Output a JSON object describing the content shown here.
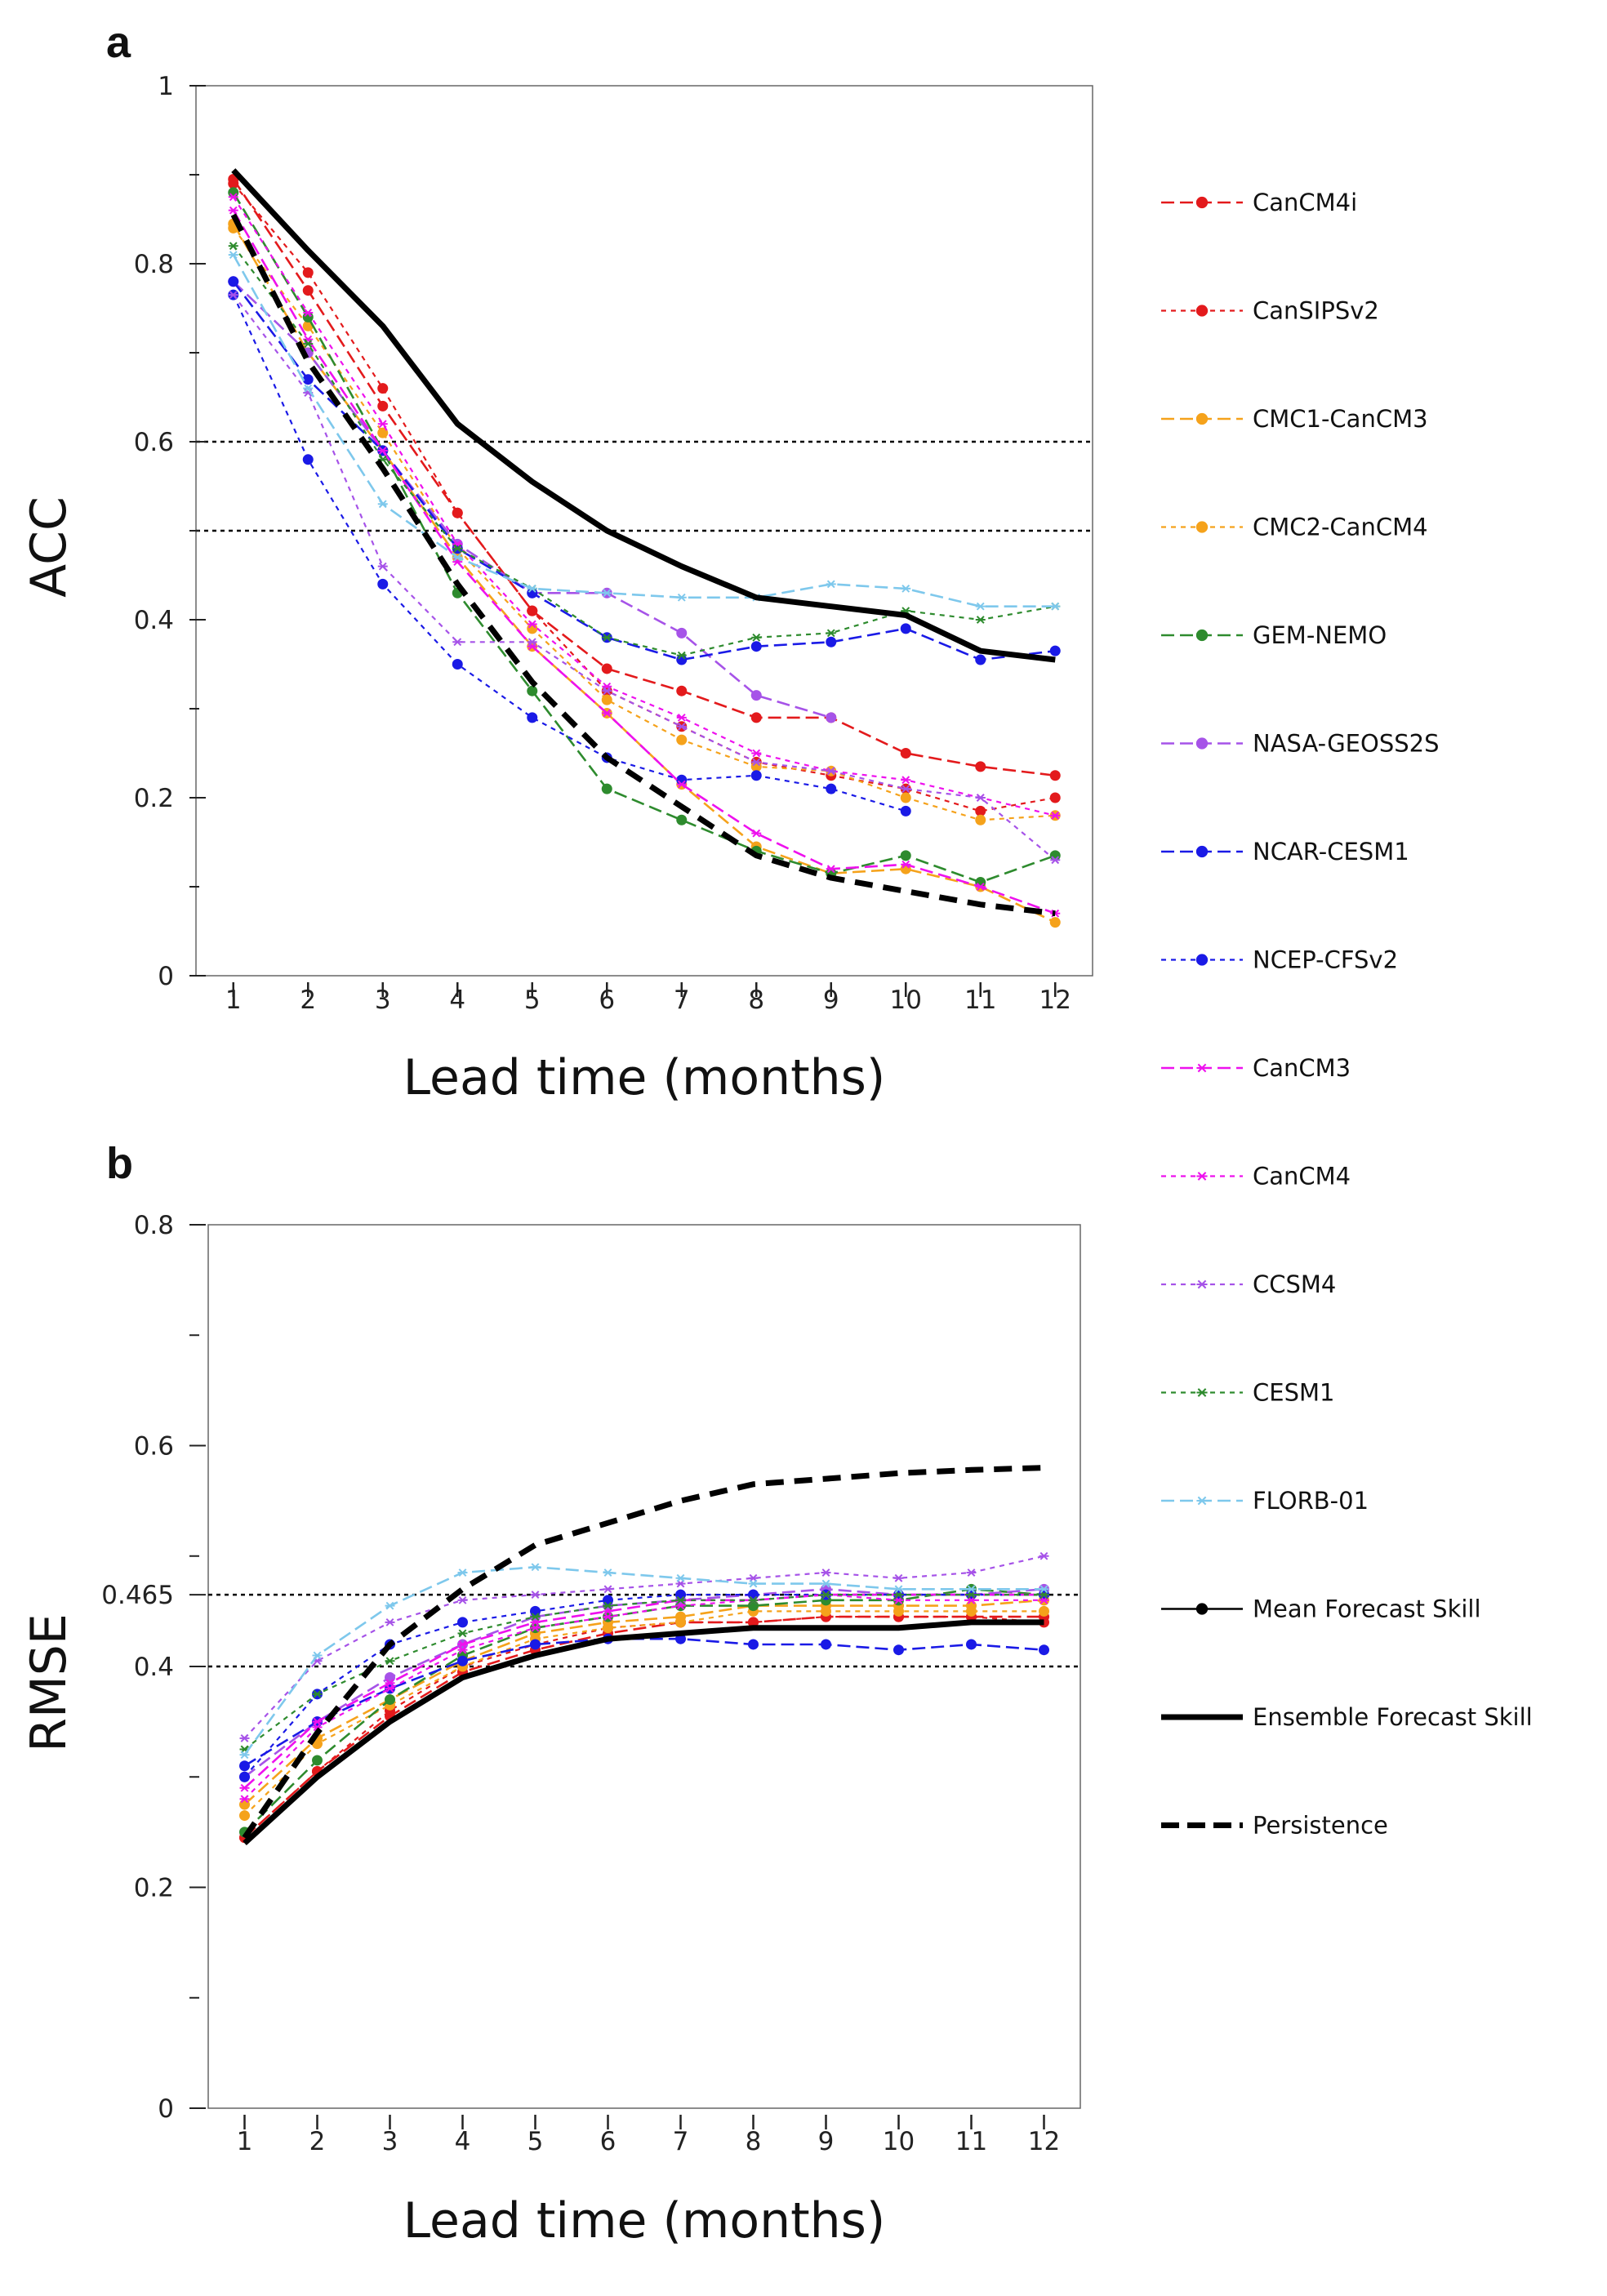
{
  "chart_data": [
    {
      "panel": "a",
      "type": "line",
      "title": "",
      "xlabel": "Lead time (months)",
      "ylabel": "ACC",
      "x": [
        1,
        2,
        3,
        4,
        5,
        6,
        7,
        8,
        9,
        10,
        11,
        12
      ],
      "xlim": [
        0.5,
        12.5
      ],
      "ylim": [
        0,
        1
      ],
      "yticks_labeled": [
        "0",
        "0.2",
        "0.4",
        "0.6",
        "0.8",
        "1"
      ],
      "yticks_labeled_values": [
        0,
        0.2,
        0.4,
        0.6,
        0.8,
        1.0
      ],
      "yticks_minor": [
        0.1,
        0.3,
        0.5,
        0.7,
        0.9
      ],
      "reference_lines": [
        0.6,
        0.5
      ],
      "grid": false,
      "series": [
        {
          "name": "CanCM4i",
          "values": [
            0.895,
            0.77,
            0.64,
            0.52,
            0.41,
            0.345,
            0.32,
            0.29,
            0.29,
            0.25,
            0.235,
            0.225
          ]
        },
        {
          "name": "CanSIPSv2",
          "values": [
            0.89,
            0.79,
            0.66,
            0.52,
            0.41,
            0.32,
            0.28,
            0.24,
            0.225,
            0.21,
            0.185,
            0.2
          ]
        },
        {
          "name": "CMC1-CanCM3",
          "values": [
            0.845,
            0.7,
            0.59,
            0.47,
            0.37,
            0.295,
            0.215,
            0.145,
            0.115,
            0.12,
            0.1,
            0.06
          ]
        },
        {
          "name": "CMC2-CanCM4",
          "values": [
            0.84,
            0.73,
            0.61,
            0.48,
            0.39,
            0.31,
            0.265,
            0.235,
            0.23,
            0.2,
            0.175,
            0.18
          ]
        },
        {
          "name": "GEM-NEMO",
          "values": [
            0.88,
            0.74,
            0.59,
            0.43,
            0.32,
            0.21,
            0.175,
            0.14,
            0.115,
            0.135,
            0.105,
            0.135
          ]
        },
        {
          "name": "NASA-GEOSS2S",
          "values": [
            0.78,
            0.7,
            0.59,
            0.485,
            0.43,
            0.43,
            0.385,
            0.315,
            0.29,
            null,
            null,
            null
          ]
        },
        {
          "name": "NCAR-CESM1",
          "values": [
            0.78,
            0.67,
            0.59,
            0.48,
            0.43,
            0.38,
            0.355,
            0.37,
            0.375,
            0.39,
            0.355,
            0.365
          ]
        },
        {
          "name": "NCEP-CFSv2",
          "values": [
            0.765,
            0.58,
            0.44,
            0.35,
            0.29,
            0.245,
            0.22,
            0.225,
            0.21,
            0.185,
            null,
            null
          ]
        },
        {
          "name": "CanCM3",
          "values": [
            0.86,
            0.715,
            0.59,
            0.465,
            0.37,
            0.295,
            0.215,
            0.16,
            0.12,
            0.125,
            0.1,
            0.07
          ]
        },
        {
          "name": "CanCM4",
          "values": [
            0.875,
            0.745,
            0.62,
            0.485,
            0.395,
            0.325,
            0.29,
            0.25,
            0.23,
            0.22,
            0.2,
            0.18
          ]
        },
        {
          "name": "CCSM4",
          "values": [
            0.765,
            0.655,
            0.46,
            0.375,
            0.375,
            0.32,
            0.28,
            0.24,
            0.23,
            0.21,
            0.2,
            0.13
          ]
        },
        {
          "name": "CESM1",
          "values": [
            0.82,
            0.71,
            0.58,
            0.48,
            0.435,
            0.38,
            0.36,
            0.38,
            0.385,
            0.41,
            0.4,
            0.415
          ]
        },
        {
          "name": "FLORB-01",
          "values": [
            0.81,
            0.66,
            0.53,
            0.47,
            0.435,
            0.43,
            0.425,
            0.425,
            0.44,
            0.435,
            0.415,
            0.415
          ]
        },
        {
          "name": "Ensemble Forecast Skill",
          "values": [
            0.905,
            0.815,
            0.73,
            0.62,
            0.555,
            0.5,
            0.46,
            0.425,
            0.415,
            0.405,
            0.365,
            0.355
          ]
        },
        {
          "name": "Persistence",
          "values": [
            0.855,
            0.69,
            0.57,
            0.44,
            0.33,
            0.245,
            0.19,
            0.135,
            0.11,
            0.095,
            0.08,
            0.07
          ]
        }
      ]
    },
    {
      "panel": "b",
      "type": "line",
      "title": "",
      "xlabel": "Lead time (months)",
      "ylabel": "RMSE",
      "x": [
        1,
        2,
        3,
        4,
        5,
        6,
        7,
        8,
        9,
        10,
        11,
        12
      ],
      "xlim": [
        0.5,
        12.5
      ],
      "ylim": [
        0,
        0.8
      ],
      "yticks_labeled": [
        "0",
        "0.2",
        "0.4",
        "0.465",
        "0.6",
        "0.8"
      ],
      "yticks_labeled_values": [
        0,
        0.2,
        0.4,
        0.465,
        0.6,
        0.8
      ],
      "yticks_minor": [
        0.1,
        0.3,
        0.5,
        0.7
      ],
      "reference_lines": [
        0.465,
        0.4
      ],
      "grid": false,
      "series": [
        {
          "name": "CanCM4i",
          "values": [
            0.245,
            0.305,
            0.355,
            0.395,
            0.415,
            0.43,
            0.44,
            0.44,
            0.445,
            0.445,
            0.445,
            0.445
          ]
        },
        {
          "name": "CanSIPSv2",
          "values": [
            0.245,
            0.305,
            0.36,
            0.4,
            0.42,
            0.435,
            0.44,
            0.44,
            0.445,
            0.445,
            0.445,
            0.44
          ]
        },
        {
          "name": "CMC1-CanCM3",
          "values": [
            0.275,
            0.335,
            0.37,
            0.405,
            0.43,
            0.44,
            0.445,
            0.455,
            0.455,
            0.455,
            0.455,
            0.46
          ]
        },
        {
          "name": "CMC2-CanCM4",
          "values": [
            0.265,
            0.33,
            0.365,
            0.4,
            0.425,
            0.435,
            0.44,
            0.45,
            0.45,
            0.45,
            0.45,
            0.45
          ]
        },
        {
          "name": "GEM-NEMO",
          "values": [
            0.25,
            0.315,
            0.37,
            0.41,
            0.435,
            0.445,
            0.455,
            0.455,
            0.46,
            0.46,
            0.47,
            0.465
          ]
        },
        {
          "name": "NASA-GEOSS2S",
          "values": [
            0.3,
            0.35,
            0.39,
            0.42,
            0.445,
            0.455,
            0.46,
            0.465,
            0.47,
            0.465,
            0.465,
            0.47
          ]
        },
        {
          "name": "NCAR-CESM1",
          "values": [
            0.31,
            0.35,
            0.38,
            0.405,
            0.42,
            0.425,
            0.425,
            0.42,
            0.42,
            0.415,
            0.42,
            0.415
          ]
        },
        {
          "name": "NCEP-CFSv2",
          "values": [
            0.3,
            0.375,
            0.42,
            0.44,
            0.45,
            0.46,
            0.465,
            0.465,
            0.465,
            0.465,
            0.465,
            0.465
          ]
        },
        {
          "name": "CanCM3",
          "values": [
            0.29,
            0.35,
            0.385,
            0.42,
            0.44,
            0.45,
            0.46,
            0.46,
            0.465,
            0.465,
            0.465,
            0.465
          ]
        },
        {
          "name": "CanCM4",
          "values": [
            0.28,
            0.345,
            0.38,
            0.415,
            0.435,
            0.445,
            0.455,
            0.46,
            0.465,
            0.46,
            0.46,
            0.46
          ]
        },
        {
          "name": "CCSM4",
          "values": [
            0.335,
            0.405,
            0.44,
            0.46,
            0.465,
            0.47,
            0.475,
            0.48,
            0.485,
            0.48,
            0.485,
            0.5
          ]
        },
        {
          "name": "CESM1",
          "values": [
            0.325,
            0.375,
            0.405,
            0.43,
            0.445,
            0.455,
            0.46,
            0.46,
            0.465,
            0.465,
            0.465,
            0.465
          ]
        },
        {
          "name": "FLORB-01",
          "values": [
            0.32,
            0.41,
            0.455,
            0.485,
            0.49,
            0.485,
            0.48,
            0.475,
            0.475,
            0.47,
            0.47,
            0.47
          ]
        },
        {
          "name": "Ensemble Forecast Skill",
          "values": [
            0.24,
            0.3,
            0.35,
            0.39,
            0.41,
            0.425,
            0.43,
            0.435,
            0.435,
            0.435,
            0.44,
            0.44
          ]
        },
        {
          "name": "Persistence",
          "values": [
            0.245,
            0.34,
            0.42,
            0.47,
            0.51,
            0.53,
            0.55,
            0.565,
            0.57,
            0.575,
            0.578,
            0.58
          ]
        }
      ]
    }
  ],
  "legend": {
    "placement": "right",
    "entries": [
      {
        "key": "CanCM4i",
        "label": "CanCM4i",
        "color": "#e31a1c",
        "dash": "long",
        "marker": "dot"
      },
      {
        "key": "CanSIPSv2",
        "label": "CanSIPSv2",
        "color": "#e31a1c",
        "dash": "short",
        "marker": "dot"
      },
      {
        "key": "CMC1-CanCM3",
        "label": "CMC1-CanCM3",
        "color": "#f5a21b",
        "dash": "long",
        "marker": "dot"
      },
      {
        "key": "CMC2-CanCM4",
        "label": "CMC2-CanCM4",
        "color": "#f5a21b",
        "dash": "short",
        "marker": "dot"
      },
      {
        "key": "GEM-NEMO",
        "label": "GEM-NEMO",
        "color": "#2e8b2e",
        "dash": "long",
        "marker": "dot"
      },
      {
        "key": "NASA-GEOSS2S",
        "label": "NASA-GEOSS2S",
        "color": "#a653e8",
        "dash": "long",
        "marker": "dot"
      },
      {
        "key": "NCAR-CESM1",
        "label": "NCAR-CESM1",
        "color": "#1a1ae6",
        "dash": "long",
        "marker": "dot"
      },
      {
        "key": "NCEP-CFSv2",
        "label": "NCEP-CFSv2",
        "color": "#1a1ae6",
        "dash": "short",
        "marker": "dot"
      },
      {
        "key": "CanCM3",
        "label": "CanCM3",
        "color": "#ee11ee",
        "dash": "long",
        "marker": "star"
      },
      {
        "key": "CanCM4",
        "label": "CanCM4",
        "color": "#ee11ee",
        "dash": "short",
        "marker": "star"
      },
      {
        "key": "CCSM4",
        "label": "CCSM4",
        "color": "#a653e8",
        "dash": "short",
        "marker": "star"
      },
      {
        "key": "CESM1",
        "label": "CESM1",
        "color": "#2e8b2e",
        "dash": "short",
        "marker": "star"
      },
      {
        "key": "FLORB-01",
        "label": "FLORB-01",
        "color": "#7ec8ec",
        "dash": "long",
        "marker": "star"
      },
      {
        "key": "Mean Forecast Skill",
        "label": "Mean Forecast Skill",
        "color": "#000000",
        "dash": "solid",
        "marker": "dot"
      },
      {
        "key": "Ensemble Forecast Skill",
        "label": "Ensemble Forecast Skill",
        "color": "#000000",
        "dash": "solid-thick",
        "marker": "none"
      },
      {
        "key": "Persistence",
        "label": "Persistence",
        "color": "#000000",
        "dash": "dash-thick",
        "marker": "none"
      }
    ]
  }
}
